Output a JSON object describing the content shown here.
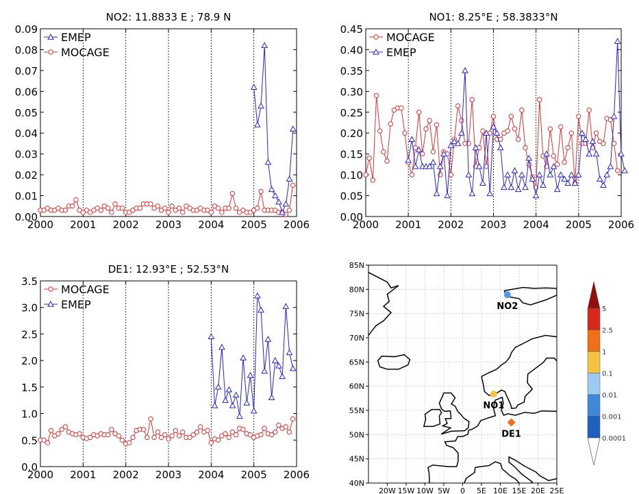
{
  "chart_data": [
    {
      "type": "line",
      "title": "NO2: 11.8833 E ; 78.9 N",
      "xlim": [
        2000,
        2006
      ],
      "ylim": [
        0,
        0.09
      ],
      "xticks": [
        "2000",
        "2001",
        "2002",
        "2003",
        "2004",
        "2005",
        "2006"
      ],
      "yticks": [
        "0.00",
        "0.01",
        "0.02",
        "0.03",
        "0.04",
        "0.05",
        "0.06",
        "0.07",
        "0.08",
        "0.09"
      ],
      "vlines": [
        2001,
        2002,
        2003,
        2004,
        2005
      ],
      "legend": [
        {
          "name": "EMEP",
          "color": "#2323d6",
          "marker": "triangle"
        },
        {
          "name": "MOCAGE",
          "color": "#e03030",
          "marker": "circle"
        }
      ],
      "series": [
        {
          "name": "MOCAGE",
          "color": "#e03030",
          "marker": "circle",
          "start": 2000.0,
          "step": 0.0833,
          "values": [
            0.003,
            0.003,
            0.004,
            0.003,
            0.003,
            0.004,
            0.003,
            0.003,
            0.005,
            0.005,
            0.008,
            0.003,
            0.002,
            0.003,
            0.002,
            0.003,
            0.004,
            0.003,
            0.005,
            0.004,
            0.002,
            0.006,
            0.004,
            0.004,
            0.002,
            0.002,
            0.003,
            0.004,
            0.004,
            0.006,
            0.006,
            0.006,
            0.004,
            0.005,
            0.003,
            0.004,
            0.002,
            0.005,
            0.003,
            0.004,
            0.002,
            0.005,
            0.004,
            0.003,
            0.003,
            0.004,
            0.003,
            0.003,
            0.002,
            0.005,
            0.004,
            0.002,
            0.004,
            0.004,
            0.011,
            0.004,
            0.002,
            0.003,
            0.002,
            0.002,
            0.003,
            0.004,
            0.012,
            0.003,
            0.003,
            0.003,
            0.003,
            0.002,
            0.002,
            0.001,
            0.003,
            0.015
          ]
        },
        {
          "name": "EMEP",
          "color": "#2323d6",
          "marker": "triangle",
          "start": 2005.0,
          "step": 0.0833,
          "values": [
            0.062,
            0.044,
            0.053,
            0.082,
            0.026,
            0.013,
            0.01,
            0.007,
            0.002,
            0.006,
            0.018,
            0.042
          ]
        }
      ]
    },
    {
      "type": "line",
      "title": "NO1: 8.25°E ; 58.3833°N",
      "xlim": [
        2000,
        2006
      ],
      "ylim": [
        0,
        0.45
      ],
      "xticks": [
        "2000",
        "2001",
        "2002",
        "2003",
        "2004",
        "2005",
        "2006"
      ],
      "yticks": [
        "0.00",
        "0.05",
        "0.10",
        "0.15",
        "0.20",
        "0.25",
        "0.30",
        "0.35",
        "0.40",
        "0.45"
      ],
      "vlines": [
        2001,
        2002,
        2003,
        2004,
        2005
      ],
      "legend": [
        {
          "name": "MOCAGE",
          "color": "#e03030",
          "marker": "circle"
        },
        {
          "name": "EMEP",
          "color": "#2323d6",
          "marker": "triangle"
        }
      ],
      "series": [
        {
          "name": "MOCAGE",
          "color": "#e03030",
          "marker": "circle",
          "start": 2000.0,
          "step": 0.0833,
          "values": [
            0.1,
            0.14,
            0.087,
            0.29,
            0.205,
            0.155,
            0.133,
            0.222,
            0.255,
            0.26,
            0.26,
            0.2,
            0.13,
            0.1,
            0.165,
            0.25,
            0.15,
            0.21,
            0.23,
            0.155,
            0.22,
            0.1,
            0.155,
            0.15,
            0.1,
            0.185,
            0.265,
            0.23,
            0.175,
            0.175,
            0.28,
            0.12,
            0.165,
            0.205,
            0.12,
            0.2,
            0.24,
            0.185,
            0.185,
            0.2,
            0.205,
            0.24,
            0.21,
            0.185,
            0.255,
            0.165,
            0.125,
            0.095,
            0.07,
            0.28,
            0.145,
            0.12,
            0.21,
            0.145,
            0.125,
            0.215,
            0.13,
            0.165,
            0.2,
            0.08,
            0.24,
            0.175,
            0.175,
            0.255,
            0.165,
            0.2,
            0.18,
            0.175,
            0.235,
            0.232,
            0.175,
            0.11
          ]
        },
        {
          "name": "EMEP",
          "color": "#2323d6",
          "marker": "triangle",
          "start": 2001.0,
          "step": 0.0833,
          "values": [
            0.135,
            0.185,
            0.12,
            0.16,
            0.12,
            0.12,
            0.12,
            0.13,
            0.055,
            0.12,
            0.15,
            0.05,
            0.17,
            0.18,
            0.175,
            0.2,
            0.35,
            0.1,
            0.055,
            0.165,
            0.12,
            0.08,
            0.2,
            0.055,
            0.215,
            0.2,
            0.165,
            0.07,
            0.1,
            0.07,
            0.11,
            0.065,
            0.1,
            0.07,
            0.14,
            0.09,
            0.05,
            0.1,
            0.075,
            0.15,
            0.1,
            0.12,
            0.065,
            0.1,
            0.09,
            0.08,
            0.1,
            0.08,
            0.1,
            0.2,
            0.185,
            0.15,
            0.18,
            0.15,
            0.09,
            0.075,
            0.1,
            0.12,
            0.24,
            0.42,
            0.15,
            0.11
          ]
        }
      ]
    },
    {
      "type": "line",
      "title": "DE1: 12.93°E ; 52.53°N",
      "xlim": [
        2000,
        2006
      ],
      "ylim": [
        0,
        3.5
      ],
      "xticks": [
        "2000",
        "2001",
        "2002",
        "2003",
        "2004",
        "2005",
        "2006"
      ],
      "yticks": [
        "0.0",
        "0.5",
        "1.0",
        "1.5",
        "2.0",
        "2.5",
        "3.0",
        "3.5"
      ],
      "vlines": [
        2001,
        2002,
        2003,
        2004,
        2005
      ],
      "legend": [
        {
          "name": "MOCAGE",
          "color": "#e03030",
          "marker": "circle"
        },
        {
          "name": "EMEP",
          "color": "#2323d6",
          "marker": "triangle"
        }
      ],
      "series": [
        {
          "name": "MOCAGE",
          "color": "#e03030",
          "marker": "circle",
          "start": 2000.0,
          "step": 0.0833,
          "values": [
            0.5,
            0.5,
            0.45,
            0.68,
            0.58,
            0.62,
            0.7,
            0.75,
            0.65,
            0.62,
            0.6,
            0.62,
            0.55,
            0.53,
            0.55,
            0.6,
            0.58,
            0.62,
            0.6,
            0.6,
            0.7,
            0.62,
            0.58,
            0.5,
            0.43,
            0.45,
            0.55,
            0.68,
            0.7,
            0.7,
            0.55,
            0.9,
            0.55,
            0.65,
            0.55,
            0.6,
            0.52,
            0.58,
            0.68,
            0.58,
            0.65,
            0.55,
            0.55,
            0.6,
            0.65,
            0.75,
            0.65,
            0.68,
            0.45,
            0.52,
            0.5,
            0.58,
            0.62,
            0.55,
            0.65,
            0.6,
            0.72,
            0.7,
            0.62,
            0.6,
            0.55,
            0.58,
            0.6,
            0.72,
            0.62,
            0.6,
            0.65,
            0.78,
            0.72,
            0.75,
            0.65,
            0.9
          ]
        },
        {
          "name": "EMEP",
          "color": "#2323d6",
          "marker": "triangle",
          "start": 2004.0,
          "step": 0.0833,
          "values": [
            2.45,
            1.15,
            1.5,
            2.25,
            1.25,
            1.45,
            1.15,
            1.35,
            0.95,
            2.05,
            1.2,
            1.72,
            1.05,
            3.22,
            2.95,
            1.8,
            2.4,
            1.3,
            2.0,
            1.9,
            1.7,
            3.02,
            2.15,
            1.85
          ]
        }
      ]
    },
    {
      "type": "map",
      "lon_range": [
        -25,
        25
      ],
      "lat_range": [
        40,
        85
      ],
      "xticks": [
        "20W",
        "15W",
        "10W",
        "5W",
        "0",
        "5E",
        "10E",
        "15E",
        "20E",
        "25E"
      ],
      "yticks": [
        "40N",
        "45N",
        "50N",
        "55N",
        "60N",
        "65N",
        "70N",
        "75N",
        "80N",
        "85N"
      ],
      "stations": [
        {
          "label": "NO2",
          "lon": 11.88,
          "lat": 78.9,
          "color": "#4d9be6",
          "shape": "circle"
        },
        {
          "label": "NO1",
          "lon": 8.25,
          "lat": 58.38,
          "color": "#f5c242",
          "shape": "circle"
        },
        {
          "label": "DE1",
          "lon": 12.93,
          "lat": 52.53,
          "color": "#f07018",
          "shape": "diamond"
        }
      ],
      "colorbar": {
        "labels": [
          "0.0001",
          "0.001",
          "0.01",
          "0.1",
          "1",
          "2.5",
          "5"
        ],
        "colors": [
          "#ffffff",
          "#1f5fbf",
          "#3f88d8",
          "#9ccaf0",
          "#f5c242",
          "#f07018",
          "#d8281c",
          "#901010"
        ]
      }
    }
  ]
}
